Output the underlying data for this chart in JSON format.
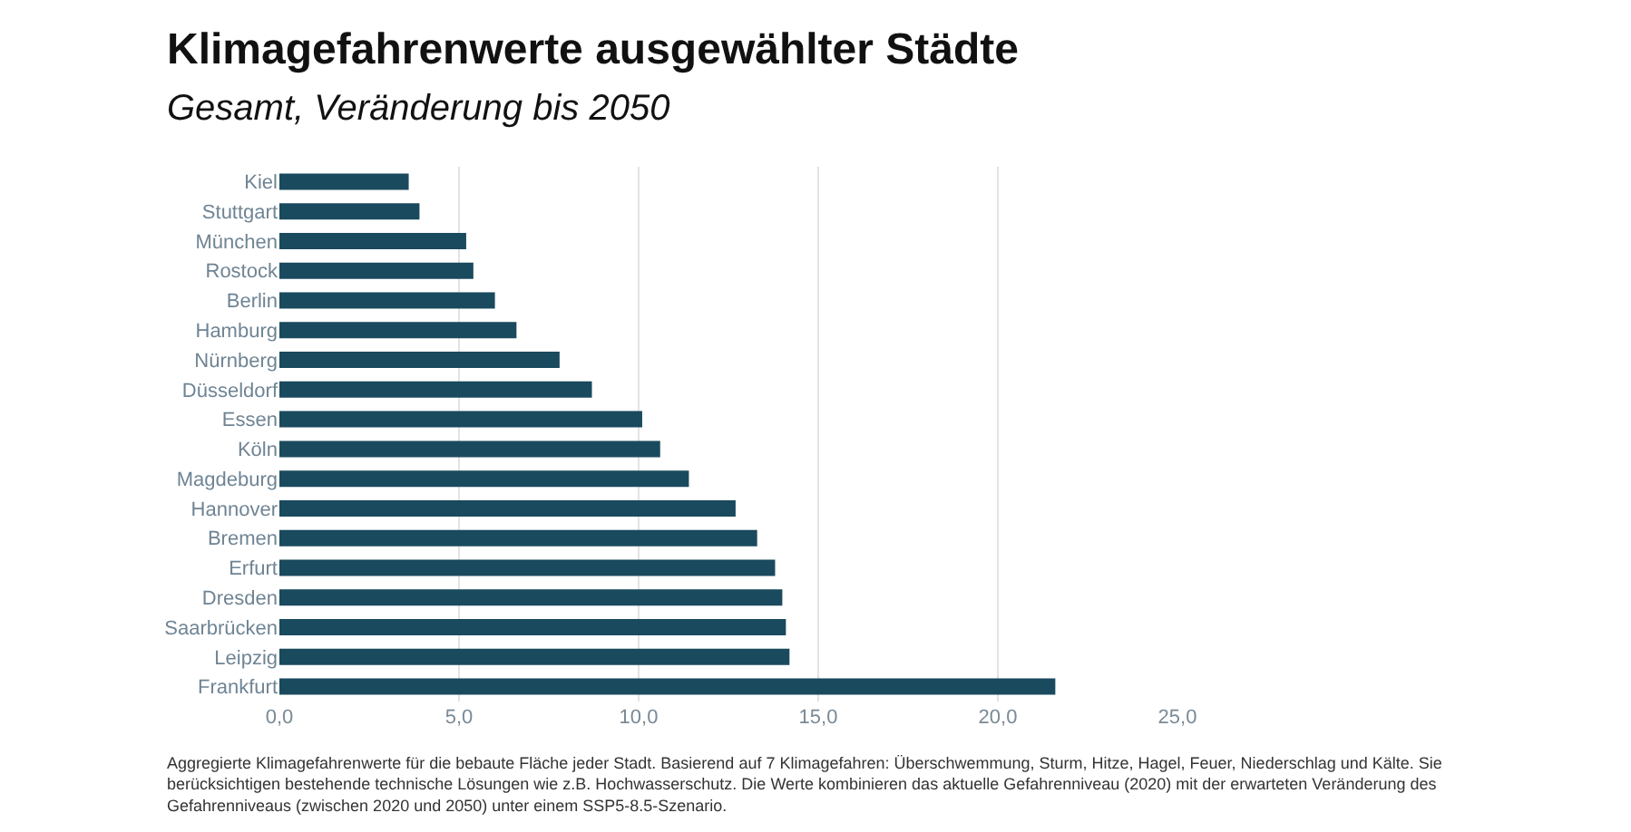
{
  "chart_data": {
    "type": "bar",
    "orientation": "horizontal",
    "title": "Klimagefahrenwerte ausgewählter Städte",
    "subtitle": "Gesamt, Veränderung bis 2050",
    "categories": [
      "Kiel",
      "Stuttgart",
      "München",
      "Rostock",
      "Berlin",
      "Hamburg",
      "Nürnberg",
      "Düsseldorf",
      "Essen",
      "Köln",
      "Magdeburg",
      "Hannover",
      "Bremen",
      "Erfurt",
      "Dresden",
      "Saarbrücken",
      "Leipzig",
      "Frankfurt"
    ],
    "values": [
      3.6,
      3.9,
      5.2,
      5.4,
      6.0,
      6.6,
      7.8,
      8.7,
      10.1,
      10.6,
      11.4,
      12.7,
      13.3,
      13.8,
      14.0,
      14.1,
      14.2,
      21.6
    ],
    "color": "#1a4a5e",
    "xlim": [
      0,
      25
    ],
    "xticks": [
      {
        "value": 0,
        "label": "0,0"
      },
      {
        "value": 5,
        "label": "5,0"
      },
      {
        "value": 10,
        "label": "10,0"
      },
      {
        "value": 15,
        "label": "15,0"
      },
      {
        "value": 20,
        "label": "20,0"
      },
      {
        "value": 25,
        "label": "25,0"
      }
    ],
    "grid": "x",
    "annotations": [
      "Aggregierte Klimagefahrenwerte für die bebaute Fläche jeder Stadt. Basierend auf 7 Klimagefahren: Überschwemmung, Sturm, Hitze, Hagel, Feuer, Niederschlag und Kälte. Sie berücksichtigen bestehende technische Lösungen wie z.B. Hochwasserschutz. Die Werte kombinieren das aktuelle Gefahrenniveau (2020) mit der erwarteten Veränderung des Gefahrenniveaus (zwischen 2020 und 2050) unter einem SSP5-8.5-Szenario."
    ]
  }
}
